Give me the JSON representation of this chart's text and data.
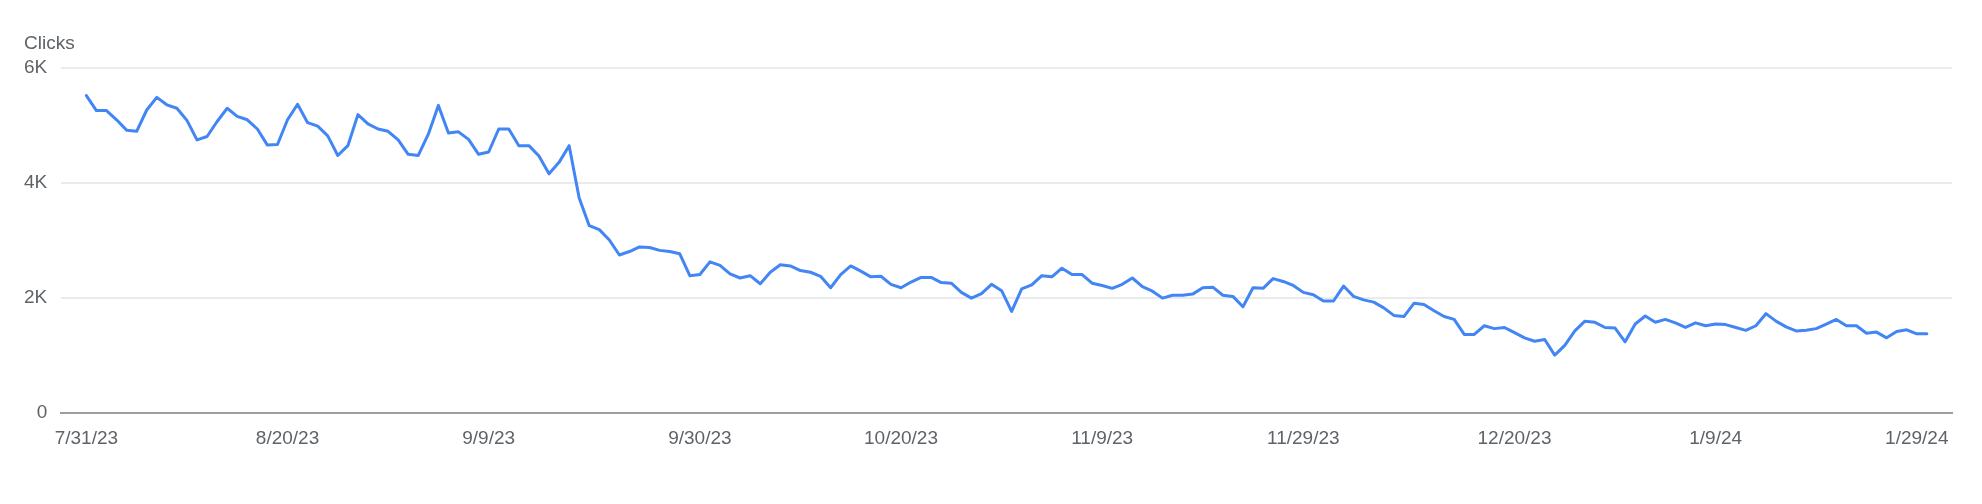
{
  "chart_data": {
    "type": "line",
    "ylabel": "Clicks",
    "x": [
      "2023-07-31",
      "2023-08-01",
      "2023-08-02",
      "2023-08-03",
      "2023-08-04",
      "2023-08-05",
      "2023-08-06",
      "2023-08-07",
      "2023-08-08",
      "2023-08-09",
      "2023-08-10",
      "2023-08-11",
      "2023-08-12",
      "2023-08-13",
      "2023-08-14",
      "2023-08-15",
      "2023-08-16",
      "2023-08-17",
      "2023-08-18",
      "2023-08-19",
      "2023-08-20",
      "2023-08-21",
      "2023-08-22",
      "2023-08-23",
      "2023-08-24",
      "2023-08-25",
      "2023-08-26",
      "2023-08-27",
      "2023-08-28",
      "2023-08-29",
      "2023-08-30",
      "2023-08-31",
      "2023-09-01",
      "2023-09-02",
      "2023-09-03",
      "2023-09-04",
      "2023-09-05",
      "2023-09-06",
      "2023-09-07",
      "2023-09-08",
      "2023-09-09",
      "2023-09-10",
      "2023-09-11",
      "2023-09-12",
      "2023-09-13",
      "2023-09-14",
      "2023-09-15",
      "2023-09-16",
      "2023-09-17",
      "2023-09-18",
      "2023-09-19",
      "2023-09-20",
      "2023-09-21",
      "2023-09-22",
      "2023-09-23",
      "2023-09-24",
      "2023-09-25",
      "2023-09-26",
      "2023-09-27",
      "2023-09-28",
      "2023-09-29",
      "2023-09-30",
      "2023-10-01",
      "2023-10-02",
      "2023-10-03",
      "2023-10-04",
      "2023-10-05",
      "2023-10-06",
      "2023-10-07",
      "2023-10-08",
      "2023-10-09",
      "2023-10-10",
      "2023-10-11",
      "2023-10-12",
      "2023-10-13",
      "2023-10-14",
      "2023-10-15",
      "2023-10-16",
      "2023-10-17",
      "2023-10-18",
      "2023-10-19",
      "2023-10-20",
      "2023-10-21",
      "2023-10-22",
      "2023-10-23",
      "2023-10-24",
      "2023-10-25",
      "2023-10-26",
      "2023-10-27",
      "2023-10-28",
      "2023-10-29",
      "2023-10-30",
      "2023-10-31",
      "2023-11-01",
      "2023-11-02",
      "2023-11-03",
      "2023-11-04",
      "2023-11-05",
      "2023-11-06",
      "2023-11-07",
      "2023-11-08",
      "2023-11-09",
      "2023-11-10",
      "2023-11-11",
      "2023-11-12",
      "2023-11-13",
      "2023-11-14",
      "2023-11-15",
      "2023-11-16",
      "2023-11-17",
      "2023-11-18",
      "2023-11-19",
      "2023-11-20",
      "2023-11-21",
      "2023-11-22",
      "2023-11-23",
      "2023-11-24",
      "2023-11-25",
      "2023-11-26",
      "2023-11-27",
      "2023-11-28",
      "2023-11-29",
      "2023-11-30",
      "2023-12-01",
      "2023-12-02",
      "2023-12-03",
      "2023-12-04",
      "2023-12-05",
      "2023-12-06",
      "2023-12-07",
      "2023-12-08",
      "2023-12-09",
      "2023-12-10",
      "2023-12-11",
      "2023-12-12",
      "2023-12-13",
      "2023-12-14",
      "2023-12-15",
      "2023-12-16",
      "2023-12-17",
      "2023-12-18",
      "2023-12-19",
      "2023-12-20",
      "2023-12-21",
      "2023-12-22",
      "2023-12-23",
      "2023-12-24",
      "2023-12-25",
      "2023-12-26",
      "2023-12-27",
      "2023-12-28",
      "2023-12-29",
      "2023-12-30",
      "2023-12-31",
      "2024-01-01",
      "2024-01-02",
      "2024-01-03",
      "2024-01-04",
      "2024-01-05",
      "2024-01-06",
      "2024-01-07",
      "2024-01-08",
      "2024-01-09",
      "2024-01-10",
      "2024-01-11",
      "2024-01-12",
      "2024-01-13",
      "2024-01-14",
      "2024-01-15",
      "2024-01-16",
      "2024-01-17",
      "2024-01-18",
      "2024-01-19",
      "2024-01-20",
      "2024-01-21",
      "2024-01-22",
      "2024-01-23",
      "2024-01-24",
      "2024-01-25",
      "2024-01-26",
      "2024-01-27",
      "2024-01-28",
      "2024-01-29",
      "2024-01-30"
    ],
    "series": [
      {
        "color": "#4285f4",
        "values": [
          5520,
          5260,
          5260,
          5100,
          4920,
          4900,
          5270,
          5490,
          5360,
          5300,
          5090,
          4750,
          4810,
          5070,
          5300,
          5160,
          5100,
          4940,
          4660,
          4670,
          5100,
          5370,
          5050,
          4990,
          4820,
          4480,
          4650,
          5190,
          5030,
          4940,
          4900,
          4750,
          4500,
          4480,
          4850,
          5350,
          4870,
          4890,
          4760,
          4500,
          4540,
          4940,
          4940,
          4650,
          4650,
          4470,
          4160,
          4360,
          4650,
          3740,
          3260,
          3190,
          3010,
          2750,
          2810,
          2890,
          2880,
          2830,
          2810,
          2770,
          2390,
          2410,
          2630,
          2570,
          2420,
          2350,
          2390,
          2250,
          2450,
          2580,
          2560,
          2480,
          2450,
          2380,
          2180,
          2410,
          2560,
          2470,
          2370,
          2380,
          2240,
          2180,
          2280,
          2360,
          2360,
          2270,
          2260,
          2100,
          2000,
          2080,
          2240,
          2130,
          1770,
          2160,
          2230,
          2390,
          2370,
          2520,
          2410,
          2410,
          2260,
          2220,
          2170,
          2240,
          2350,
          2200,
          2120,
          2000,
          2050,
          2050,
          2070,
          2180,
          2190,
          2050,
          2030,
          1850,
          2180,
          2170,
          2340,
          2290,
          2220,
          2100,
          2060,
          1950,
          1950,
          2210,
          2030,
          1970,
          1930,
          1830,
          1700,
          1680,
          1910,
          1890,
          1780,
          1680,
          1630,
          1370,
          1370,
          1520,
          1470,
          1490,
          1400,
          1310,
          1250,
          1280,
          1010,
          1180,
          1430,
          1600,
          1580,
          1490,
          1480,
          1240,
          1550,
          1690,
          1580,
          1630,
          1570,
          1490,
          1570,
          1520,
          1550,
          1540,
          1490,
          1440,
          1520,
          1730,
          1600,
          1500,
          1430,
          1440,
          1470,
          1550,
          1630,
          1520,
          1520,
          1390,
          1410,
          1310,
          1420,
          1450,
          1380,
          1380
        ]
      }
    ],
    "xlim": [
      "2023-07-28T12:00",
      "2024-02-01T12:00"
    ],
    "xticks": [
      {
        "value": "2023-07-31",
        "label": "7/31/23"
      },
      {
        "value": "2023-08-20",
        "label": "8/20/23"
      },
      {
        "value": "2023-09-09",
        "label": "9/9/23"
      },
      {
        "value": "2023-09-30",
        "label": "9/30/23"
      },
      {
        "value": "2023-10-20",
        "label": "10/20/23"
      },
      {
        "value": "2023-11-09",
        "label": "11/9/23"
      },
      {
        "value": "2023-11-29",
        "label": "11/29/23"
      },
      {
        "value": "2023-12-20",
        "label": "12/20/23"
      },
      {
        "value": "2024-01-09",
        "label": "1/9/24"
      },
      {
        "value": "2024-01-29",
        "label": "1/29/24"
      }
    ],
    "ylim": [
      0,
      6000
    ],
    "yticks": [
      {
        "value": 0,
        "label": "0"
      },
      {
        "value": 2000,
        "label": "2K"
      },
      {
        "value": 4000,
        "label": "4K"
      },
      {
        "value": 6000,
        "label": "6K"
      }
    ],
    "grid": "y",
    "legend": false,
    "marker": "none",
    "line_style": "solid"
  }
}
